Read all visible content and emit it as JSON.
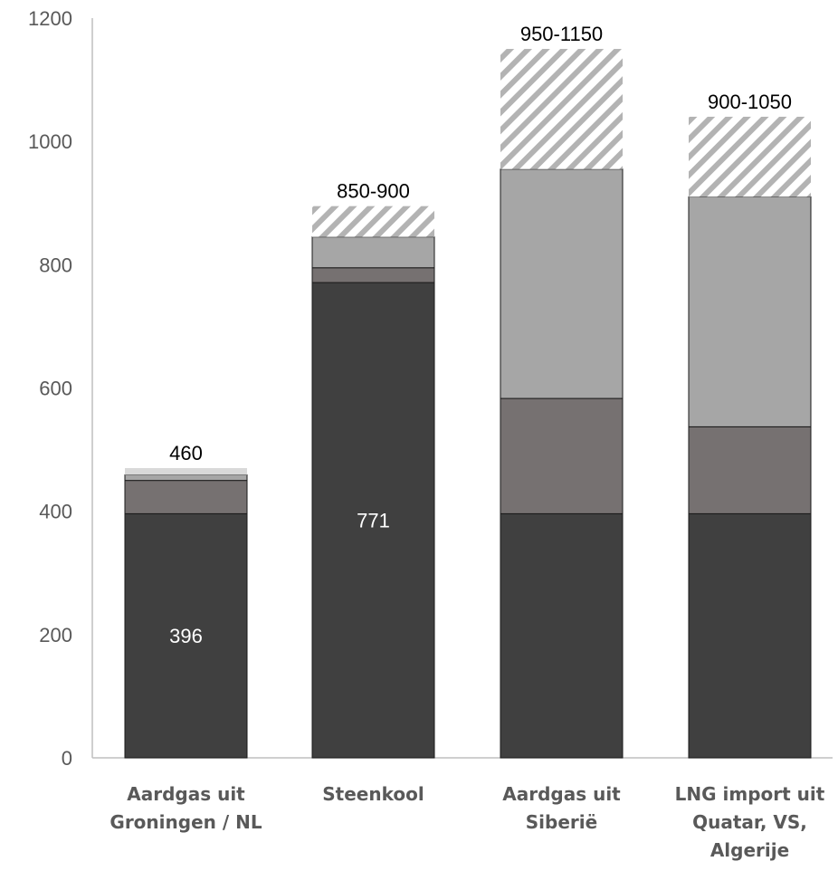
{
  "chart_data": {
    "type": "bar",
    "stacked": true,
    "categories": [
      [
        "Aardgas uit",
        "Groningen / NL"
      ],
      [
        "Steenkool"
      ],
      [
        "Aardgas uit",
        "Siberië"
      ],
      [
        "LNG import uit",
        "Quatar, VS,",
        "Algerije"
      ]
    ],
    "series": [
      {
        "values": [
          396,
          771,
          396,
          396
        ],
        "color": "#404040"
      },
      {
        "values": [
          54,
          24,
          187,
          141
        ],
        "color": "#767171"
      },
      {
        "values": [
          9,
          50,
          372,
          373
        ],
        "color": "#a6a6a6"
      },
      {
        "values": [
          0,
          50,
          195,
          130
        ],
        "color": "#a6a6a6",
        "pattern": "diagonal-hatch"
      }
    ],
    "cap": [
      11,
      0,
      0,
      0
    ],
    "segment_labels": [
      "396",
      "771",
      "",
      ""
    ],
    "total_labels": [
      "460",
      "850-900",
      "950-1150",
      "900-1050"
    ],
    "ylim": [
      0,
      1200
    ],
    "yticks": [
      0,
      200,
      400,
      600,
      800,
      1000,
      1200
    ],
    "title": "",
    "xlabel": "",
    "ylabel": "",
    "grid": false,
    "legend": "none",
    "colors": {
      "axis": "#bfbfbf",
      "tick_text": "#595959",
      "cap": "#d9d9d9"
    }
  }
}
